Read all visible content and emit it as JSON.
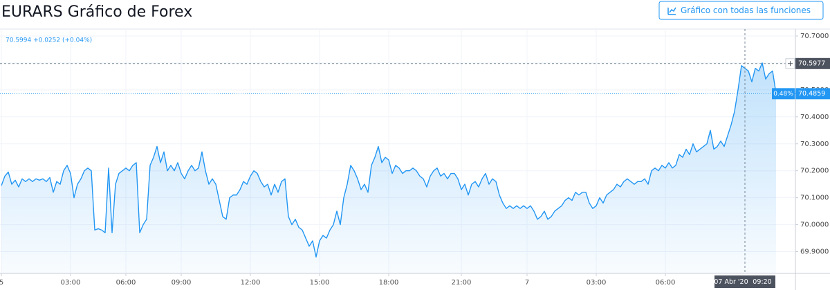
{
  "header": {
    "title": "EURARS Gráfico de Forex",
    "button": "Gráfico con todas las funciones"
  },
  "chart_data": {
    "type": "area",
    "legend_text": "70.5994 +0.0252 (+0.04%)",
    "color": "#2196f3",
    "grid": true,
    "xlim": [
      0,
      229.6
    ],
    "ylim": [
      69.8192,
      70.7256
    ],
    "yticks": [
      {
        "value": 69.9,
        "label": "69.9000"
      },
      {
        "value": 70.0,
        "label": "70.0000"
      },
      {
        "value": 70.1,
        "label": "70.1000"
      },
      {
        "value": 70.2,
        "label": "70.2000"
      },
      {
        "value": 70.3,
        "label": "70.3000"
      },
      {
        "value": 70.4,
        "label": "70.4000"
      },
      {
        "value": 70.5,
        "label": "70.5000"
      },
      {
        "value": 70.6,
        "label": "70.6000"
      },
      {
        "value": 70.7,
        "label": "70.7000"
      }
    ],
    "xticks": [
      {
        "value": 0,
        "label": "5"
      },
      {
        "value": 20,
        "label": "03:00"
      },
      {
        "value": 36,
        "label": "06:00"
      },
      {
        "value": 52,
        "label": "09:00"
      },
      {
        "value": 72,
        "label": "12:00"
      },
      {
        "value": 92,
        "label": "15:00"
      },
      {
        "value": 112,
        "label": "18:00"
      },
      {
        "value": 133,
        "label": "21:00"
      },
      {
        "value": 152,
        "label": "7"
      },
      {
        "value": 172,
        "label": "03:00"
      },
      {
        "value": 192,
        "label": "06:00"
      }
    ],
    "crosshair": {
      "x": 215,
      "value": 70.5977,
      "date_label": "07 Abr '20",
      "time_label": "09:20"
    },
    "last": {
      "value": 70.4859,
      "change_label": "0.48%"
    },
    "values": [
      70.145,
      70.18,
      70.195,
      70.15,
      70.165,
      70.14,
      70.17,
      70.16,
      70.17,
      70.16,
      70.17,
      70.165,
      70.17,
      70.16,
      70.175,
      70.12,
      70.16,
      70.15,
      70.2,
      70.22,
      70.19,
      70.1,
      70.15,
      70.17,
      70.2,
      70.21,
      70.2,
      69.98,
      69.985,
      69.98,
      69.97,
      70.21,
      69.97,
      70.15,
      70.19,
      70.2,
      70.21,
      70.2,
      70.22,
      70.23,
      69.97,
      70.0,
      70.02,
      70.22,
      70.25,
      70.29,
      70.23,
      70.27,
      70.2,
      70.22,
      70.2,
      70.23,
      70.19,
      70.17,
      70.2,
      70.22,
      70.2,
      70.21,
      70.27,
      70.2,
      70.15,
      70.17,
      70.15,
      70.09,
      70.03,
      70.02,
      70.1,
      70.11,
      70.11,
      70.13,
      70.16,
      70.15,
      70.18,
      70.2,
      70.19,
      70.16,
      70.14,
      70.15,
      70.11,
      70.15,
      70.12,
      70.16,
      70.17,
      70.03,
      70.0,
      70.02,
      69.99,
      69.98,
      69.95,
      69.92,
      69.94,
      69.88,
      69.94,
      69.96,
      69.95,
      69.98,
      70.0,
      70.05,
      70.0,
      70.1,
      70.15,
      70.22,
      70.2,
      70.17,
      70.13,
      70.15,
      70.12,
      70.22,
      70.25,
      70.29,
      70.23,
      70.25,
      70.24,
      70.19,
      70.22,
      70.21,
      70.19,
      70.2,
      70.2,
      70.21,
      70.2,
      70.18,
      70.17,
      70.14,
      70.18,
      70.2,
      70.21,
      70.18,
      70.19,
      70.17,
      70.19,
      70.19,
      70.17,
      70.13,
      70.15,
      70.11,
      70.15,
      70.16,
      70.14,
      70.17,
      70.19,
      70.15,
      70.17,
      70.16,
      70.11,
      70.08,
      70.06,
      70.07,
      70.06,
      70.07,
      70.06,
      70.07,
      70.06,
      70.07,
      70.05,
      70.02,
      70.03,
      70.05,
      70.02,
      70.03,
      70.05,
      70.06,
      70.07,
      70.09,
      70.1,
      70.09,
      70.12,
      70.11,
      70.12,
      70.12,
      70.08,
      70.06,
      70.07,
      70.1,
      70.08,
      70.11,
      70.12,
      70.13,
      70.15,
      70.14,
      70.16,
      70.17,
      70.16,
      70.15,
      70.16,
      70.16,
      70.17,
      70.15,
      70.2,
      70.21,
      70.2,
      70.22,
      70.21,
      70.23,
      70.21,
      70.22,
      70.26,
      70.25,
      70.28,
      70.26,
      70.3,
      70.27,
      70.28,
      70.29,
      70.3,
      70.35,
      70.28,
      70.29,
      70.31,
      70.29,
      70.33,
      70.37,
      70.42,
      70.5,
      70.59,
      70.58,
      70.57,
      70.53,
      70.58,
      70.57,
      70.6,
      70.54,
      70.56,
      70.57,
      70.4859
    ]
  }
}
